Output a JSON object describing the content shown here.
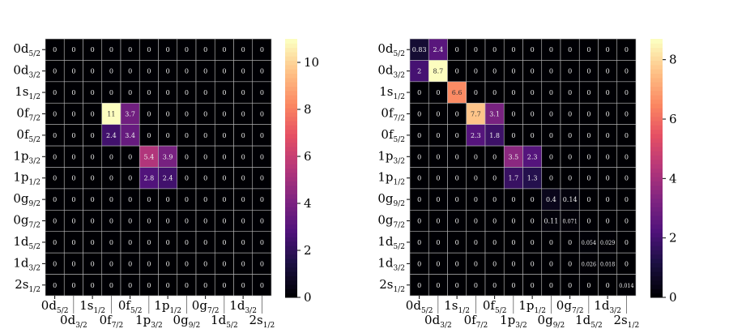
{
  "chart_data": [
    {
      "type": "heatmap",
      "colormap": "magma",
      "labels": [
        {
          "name": "0d",
          "sub": "5/2"
        },
        {
          "name": "0d",
          "sub": "3/2"
        },
        {
          "name": "1s",
          "sub": "1/2"
        },
        {
          "name": "0f",
          "sub": "7/2"
        },
        {
          "name": "0f",
          "sub": "5/2"
        },
        {
          "name": "1p",
          "sub": "3/2"
        },
        {
          "name": "1p",
          "sub": "1/2"
        },
        {
          "name": "0g",
          "sub": "9/2"
        },
        {
          "name": "0g",
          "sub": "7/2"
        },
        {
          "name": "1d",
          "sub": "5/2"
        },
        {
          "name": "1d",
          "sub": "3/2"
        },
        {
          "name": "2s",
          "sub": "1/2"
        }
      ],
      "values": [
        [
          0,
          0,
          0,
          0,
          0,
          0,
          0,
          0,
          0,
          0,
          0,
          0
        ],
        [
          0,
          0,
          0,
          0,
          0,
          0,
          0,
          0,
          0,
          0,
          0,
          0
        ],
        [
          0,
          0,
          0,
          0,
          0,
          0,
          0,
          0,
          0,
          0,
          0,
          0
        ],
        [
          0,
          0,
          0,
          11,
          3.7,
          0,
          0,
          0,
          0,
          0,
          0,
          0
        ],
        [
          0,
          0,
          0,
          2.4,
          3.4,
          0,
          0,
          0,
          0,
          0,
          0,
          0
        ],
        [
          0,
          0,
          0,
          0,
          0,
          5.4,
          3.9,
          0,
          0,
          0,
          0,
          0
        ],
        [
          0,
          0,
          0,
          0,
          0,
          2.8,
          2.4,
          0,
          0,
          0,
          0,
          0
        ],
        [
          0,
          0,
          0,
          0,
          0,
          0,
          0,
          0,
          0,
          0,
          0,
          0
        ],
        [
          0,
          0,
          0,
          0,
          0,
          0,
          0,
          0,
          0,
          0,
          0,
          0
        ],
        [
          0,
          0,
          0,
          0,
          0,
          0,
          0,
          0,
          0,
          0,
          0,
          0
        ],
        [
          0,
          0,
          0,
          0,
          0,
          0,
          0,
          0,
          0,
          0,
          0,
          0
        ],
        [
          0,
          0,
          0,
          0,
          0,
          0,
          0,
          0,
          0,
          0,
          0,
          0
        ]
      ],
      "colorbar": {
        "range": [
          0,
          11
        ],
        "ticks": [
          0,
          2,
          4,
          6,
          8,
          10
        ]
      }
    },
    {
      "type": "heatmap",
      "colormap": "magma",
      "labels": [
        {
          "name": "0d",
          "sub": "5/2"
        },
        {
          "name": "0d",
          "sub": "3/2"
        },
        {
          "name": "1s",
          "sub": "1/2"
        },
        {
          "name": "0f",
          "sub": "7/2"
        },
        {
          "name": "0f",
          "sub": "5/2"
        },
        {
          "name": "1p",
          "sub": "3/2"
        },
        {
          "name": "1p",
          "sub": "1/2"
        },
        {
          "name": "0g",
          "sub": "9/2"
        },
        {
          "name": "0g",
          "sub": "7/2"
        },
        {
          "name": "1d",
          "sub": "5/2"
        },
        {
          "name": "1d",
          "sub": "3/2"
        },
        {
          "name": "2s",
          "sub": "1/2"
        }
      ],
      "values": [
        [
          0.83,
          2.4,
          0,
          0,
          0,
          0,
          0,
          0,
          0,
          0,
          0,
          0
        ],
        [
          2,
          8.7,
          0,
          0,
          0,
          0,
          0,
          0,
          0,
          0,
          0,
          0
        ],
        [
          0,
          0,
          6.6,
          0,
          0,
          0,
          0,
          0,
          0,
          0,
          0,
          0
        ],
        [
          0,
          0,
          0,
          7.7,
          3.1,
          0,
          0,
          0,
          0,
          0,
          0,
          0
        ],
        [
          0,
          0,
          0,
          2.3,
          1.8,
          0,
          0,
          0,
          0,
          0,
          0,
          0
        ],
        [
          0,
          0,
          0,
          0,
          0,
          3.5,
          2.3,
          0,
          0,
          0,
          0,
          0
        ],
        [
          0,
          0,
          0,
          0,
          0,
          1.7,
          1.3,
          0,
          0,
          0,
          0,
          0
        ],
        [
          0,
          0,
          0,
          0,
          0,
          0,
          0,
          0.4,
          0.14,
          0,
          0,
          0
        ],
        [
          0,
          0,
          0,
          0,
          0,
          0,
          0,
          0.11,
          0.071,
          0,
          0,
          0
        ],
        [
          0,
          0,
          0,
          0,
          0,
          0,
          0,
          0,
          0,
          0.054,
          0.029,
          0
        ],
        [
          0,
          0,
          0,
          0,
          0,
          0,
          0,
          0,
          0,
          0.026,
          0.018,
          0
        ],
        [
          0,
          0,
          0,
          0,
          0,
          0,
          0,
          0,
          0,
          0,
          0,
          0.014
        ]
      ],
      "colorbar": {
        "range": [
          0,
          8.7
        ],
        "ticks": [
          0,
          2,
          4,
          6,
          8
        ]
      }
    }
  ]
}
